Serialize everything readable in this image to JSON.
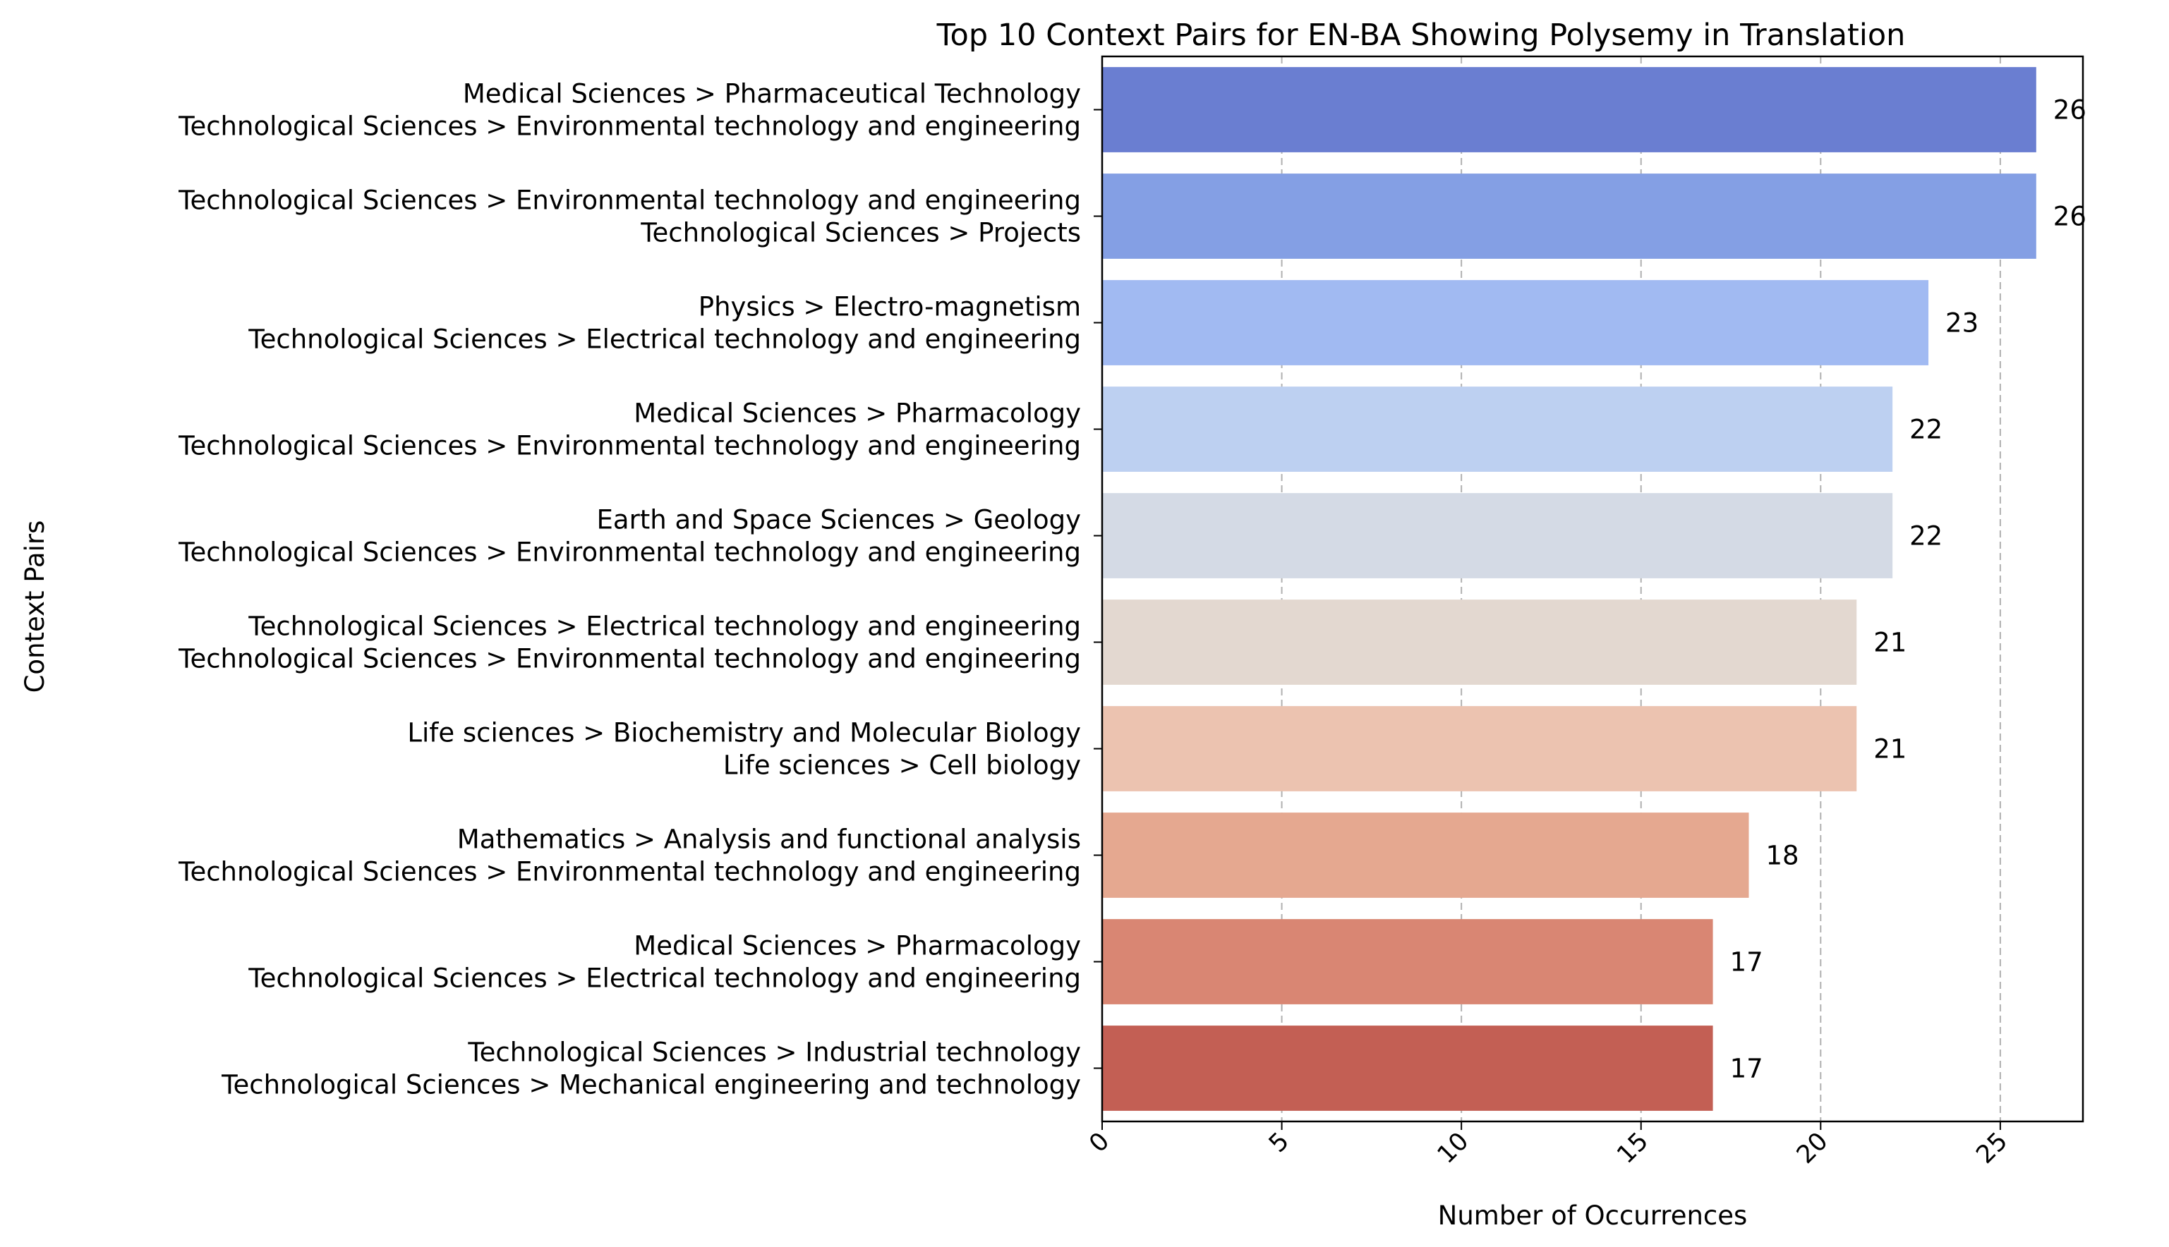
{
  "chart_data": {
    "type": "bar",
    "orientation": "horizontal",
    "title": "Top 10 Context Pairs for EN-BA Showing Polysemy in Translation",
    "xlabel": "Number of Occurrences",
    "ylabel": "Context Pairs",
    "xlim": [
      0,
      27.3
    ],
    "xticks": [
      0,
      5,
      10,
      15,
      20,
      25
    ],
    "grid": "x-axis dashed vertical gridlines",
    "legend": "none",
    "categories": [
      [
        "Medical Sciences > Pharmaceutical Technology",
        "Technological Sciences > Environmental technology and engineering"
      ],
      [
        "Technological Sciences > Environmental technology and engineering",
        "Technological Sciences > Projects"
      ],
      [
        "Physics > Electro-magnetism",
        "Technological Sciences > Electrical technology and engineering"
      ],
      [
        "Medical Sciences > Pharmacology",
        "Technological Sciences > Environmental technology and engineering"
      ],
      [
        "Earth and Space Sciences > Geology",
        "Technological Sciences > Environmental technology and engineering"
      ],
      [
        "Technological Sciences > Electrical technology and engineering",
        "Technological Sciences > Environmental technology and engineering"
      ],
      [
        "Life sciences > Biochemistry and Molecular Biology",
        "Life sciences > Cell biology"
      ],
      [
        "Mathematics > Analysis and functional analysis",
        "Technological Sciences > Environmental technology and engineering"
      ],
      [
        "Medical Sciences > Pharmacology",
        "Technological Sciences > Electrical technology and engineering"
      ],
      [
        "Technological Sciences > Industrial technology",
        "Technological Sciences > Mechanical engineering and technology"
      ]
    ],
    "values": [
      26,
      26,
      23,
      22,
      22,
      21,
      21,
      18,
      17,
      17
    ],
    "colors": [
      "#6a7ed1",
      "#849fe4",
      "#a1baf2",
      "#bdd0f1",
      "#d4dae5",
      "#e3d8d0",
      "#ecc3b0",
      "#e5a890",
      "#d98673",
      "#c35f54"
    ]
  }
}
